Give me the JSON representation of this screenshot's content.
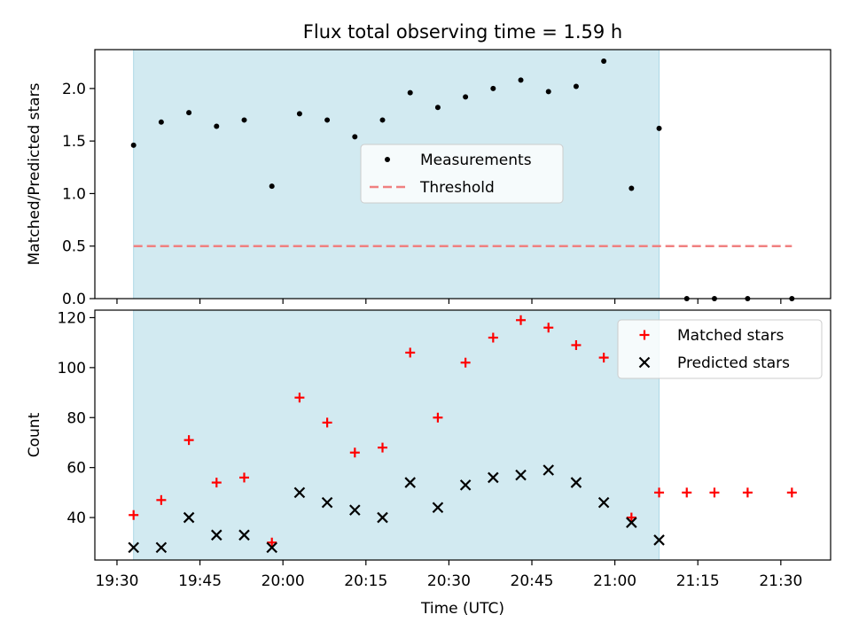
{
  "chart_data": {
    "type": "scatter",
    "title": "Flux total observing time = 1.59 h",
    "xlabel": "Time (UTC)",
    "x_ticks": [
      "19:30",
      "19:45",
      "20:00",
      "20:15",
      "20:30",
      "20:45",
      "21:00",
      "21:15",
      "21:30"
    ],
    "x_range": [
      "19:26",
      "21:39"
    ],
    "shaded_interval": [
      "19:33",
      "21:08"
    ],
    "colors": {
      "shade": "#add8e6",
      "threshold": "#f08080",
      "matched": "#ff0000",
      "predicted": "#000000",
      "measurements": "#000000"
    },
    "panels": [
      {
        "id": "ratio",
        "ylabel": "Matched/Predicted stars",
        "ylim": [
          0,
          2.37
        ],
        "yticks": [
          "0.0",
          "0.5",
          "1.0",
          "1.5",
          "2.0"
        ],
        "legend_position": "center",
        "series": [
          {
            "name": "Measurements",
            "marker": "dot",
            "points": [
              [
                "19:33",
                1.46
              ],
              [
                "19:38",
                1.68
              ],
              [
                "19:43",
                1.77
              ],
              [
                "19:48",
                1.64
              ],
              [
                "19:53",
                1.7
              ],
              [
                "19:58",
                1.07
              ],
              [
                "20:03",
                1.76
              ],
              [
                "20:08",
                1.7
              ],
              [
                "20:13",
                1.54
              ],
              [
                "20:18",
                1.7
              ],
              [
                "20:23",
                1.96
              ],
              [
                "20:28",
                1.82
              ],
              [
                "20:33",
                1.92
              ],
              [
                "20:38",
                2.0
              ],
              [
                "20:43",
                2.08
              ],
              [
                "20:48",
                1.97
              ],
              [
                "20:53",
                2.02
              ],
              [
                "20:58",
                2.26
              ],
              [
                "21:03",
                1.05
              ],
              [
                "21:08",
                1.62
              ],
              [
                "21:13",
                0.0
              ],
              [
                "21:18",
                0.0
              ],
              [
                "21:24",
                0.0
              ],
              [
                "21:32",
                0.0
              ]
            ]
          },
          {
            "name": "Threshold",
            "marker": "dashed-line",
            "points": [
              [
                "19:33",
                0.5
              ],
              [
                "21:32",
                0.5
              ]
            ]
          }
        ]
      },
      {
        "id": "counts",
        "ylabel": "Count",
        "ylim": [
          23,
          123
        ],
        "yticks": [
          "40",
          "60",
          "80",
          "100",
          "120"
        ],
        "legend_position": "upper right",
        "series": [
          {
            "name": "Matched stars",
            "marker": "plus",
            "points": [
              [
                "19:33",
                41
              ],
              [
                "19:38",
                47
              ],
              [
                "19:43",
                71
              ],
              [
                "19:48",
                54
              ],
              [
                "19:53",
                56
              ],
              [
                "19:58",
                30
              ],
              [
                "20:03",
                88
              ],
              [
                "20:08",
                78
              ],
              [
                "20:13",
                66
              ],
              [
                "20:18",
                68
              ],
              [
                "20:23",
                106
              ],
              [
                "20:28",
                80
              ],
              [
                "20:33",
                102
              ],
              [
                "20:38",
                112
              ],
              [
                "20:43",
                119
              ],
              [
                "20:48",
                116
              ],
              [
                "20:53",
                109
              ],
              [
                "20:58",
                104
              ],
              [
                "21:03",
                40
              ],
              [
                "21:08",
                50
              ],
              [
                "21:13",
                50
              ],
              [
                "21:18",
                50
              ],
              [
                "21:24",
                50
              ],
              [
                "21:32",
                50
              ]
            ]
          },
          {
            "name": "Predicted stars",
            "marker": "x",
            "points": [
              [
                "19:33",
                28
              ],
              [
                "19:38",
                28
              ],
              [
                "19:43",
                40
              ],
              [
                "19:48",
                33
              ],
              [
                "19:53",
                33
              ],
              [
                "19:58",
                28
              ],
              [
                "20:03",
                50
              ],
              [
                "20:08",
                46
              ],
              [
                "20:13",
                43
              ],
              [
                "20:18",
                40
              ],
              [
                "20:23",
                54
              ],
              [
                "20:28",
                44
              ],
              [
                "20:33",
                53
              ],
              [
                "20:38",
                56
              ],
              [
                "20:43",
                57
              ],
              [
                "20:48",
                59
              ],
              [
                "20:53",
                54
              ],
              [
                "20:58",
                46
              ],
              [
                "21:03",
                38
              ],
              [
                "21:08",
                31
              ]
            ]
          }
        ]
      }
    ]
  }
}
